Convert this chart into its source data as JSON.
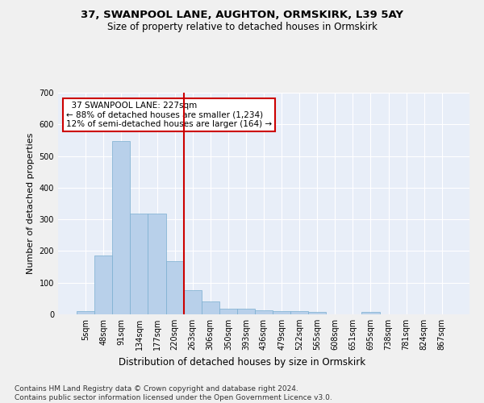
{
  "title1": "37, SWANPOOL LANE, AUGHTON, ORMSKIRK, L39 5AY",
  "title2": "Size of property relative to detached houses in Ormskirk",
  "xlabel": "Distribution of detached houses by size in Ormskirk",
  "ylabel": "Number of detached properties",
  "bar_labels": [
    "5sqm",
    "48sqm",
    "91sqm",
    "134sqm",
    "177sqm",
    "220sqm",
    "263sqm",
    "306sqm",
    "350sqm",
    "393sqm",
    "436sqm",
    "479sqm",
    "522sqm",
    "565sqm",
    "608sqm",
    "651sqm",
    "695sqm",
    "738sqm",
    "781sqm",
    "824sqm",
    "867sqm"
  ],
  "bar_values": [
    10,
    185,
    548,
    317,
    317,
    168,
    76,
    40,
    17,
    17,
    14,
    11,
    11,
    8,
    0,
    0,
    7,
    0,
    0,
    0,
    0
  ],
  "bar_color": "#b8d0ea",
  "bar_edge_color": "#7aaed0",
  "vline_x": 5.5,
  "vline_color": "#cc0000",
  "annotation_line1": "  37 SWANPOOL LANE: 227sqm",
  "annotation_line2": "← 88% of detached houses are smaller (1,234)",
  "annotation_line3": "12% of semi-detached houses are larger (164) →",
  "annotation_box_color": "#ffffff",
  "annotation_box_edge": "#cc0000",
  "ylim": [
    0,
    700
  ],
  "yticks": [
    0,
    100,
    200,
    300,
    400,
    500,
    600,
    700
  ],
  "footer": "Contains HM Land Registry data © Crown copyright and database right 2024.\nContains public sector information licensed under the Open Government Licence v3.0.",
  "bg_color": "#e8eef8",
  "grid_color": "#ffffff",
  "title1_fontsize": 9.5,
  "title2_fontsize": 8.5,
  "xlabel_fontsize": 8.5,
  "ylabel_fontsize": 8,
  "tick_fontsize": 7,
  "annot_fontsize": 7.5,
  "footer_fontsize": 6.5
}
